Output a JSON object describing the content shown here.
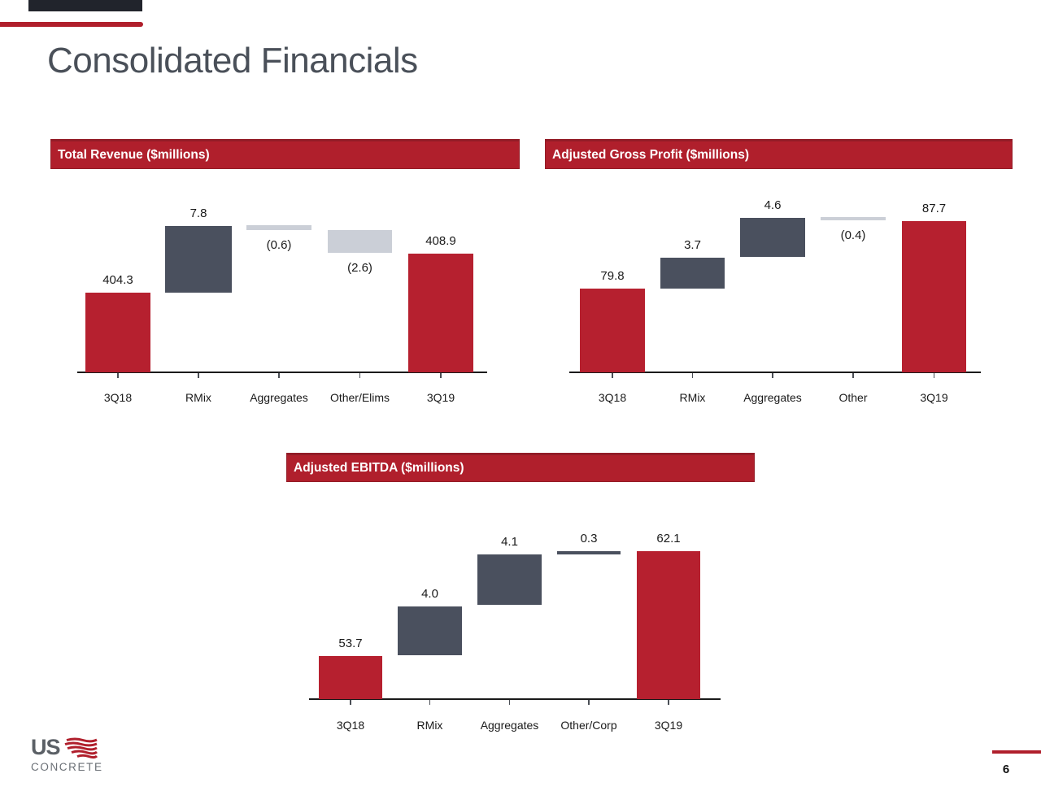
{
  "slide": {
    "title": "Consolidated Financials",
    "page_number": "6"
  },
  "logo": {
    "line1": "US",
    "line2": "CONCRETE",
    "flag_icon": "us-flag-stripes-icon"
  },
  "colors": {
    "accent_red": "#b01f2c",
    "bar_red": "#b6202f",
    "bar_slate": "#4a505e",
    "bar_gray": "#cbcfd7",
    "axis": "#1a1a1a",
    "header_dark": "#21242c",
    "title_text": "#4a5059",
    "label_text": "#1a1a1a"
  },
  "chart_data": [
    {
      "type": "bar",
      "subtype": "waterfall",
      "title": "Total Revenue ($millions)",
      "categories": [
        "3Q18",
        "RMix",
        "Aggregates",
        "Other/Elims",
        "3Q19"
      ],
      "values": [
        404.3,
        7.8,
        -0.6,
        -2.6,
        408.9
      ],
      "labels": [
        "404.3",
        "7.8",
        "(0.6)",
        "(2.6)",
        "408.9"
      ],
      "bar_kinds": [
        "total",
        "increase",
        "decrease",
        "decrease",
        "total"
      ],
      "label_side": [
        "above",
        "above",
        "below",
        "below",
        "above"
      ],
      "xlabel": "",
      "ylabel": "",
      "grid": false,
      "legend": false
    },
    {
      "type": "bar",
      "subtype": "waterfall",
      "title": "Adjusted Gross Profit ($millions)",
      "categories": [
        "3Q18",
        "RMix",
        "Aggregates",
        "Other",
        "3Q19"
      ],
      "values": [
        79.8,
        3.7,
        4.6,
        -0.4,
        87.7
      ],
      "labels": [
        "79.8",
        "3.7",
        "4.6",
        "(0.4)",
        "87.7"
      ],
      "bar_kinds": [
        "total",
        "increase",
        "increase",
        "decrease",
        "total"
      ],
      "label_side": [
        "above",
        "above",
        "above",
        "below",
        "above"
      ],
      "xlabel": "",
      "ylabel": "",
      "grid": false,
      "legend": false
    },
    {
      "type": "bar",
      "subtype": "waterfall",
      "title": "Adjusted EBITDA ($millions)",
      "categories": [
        "3Q18",
        "RMix",
        "Aggregates",
        "Other/Corp",
        "3Q19"
      ],
      "values": [
        53.7,
        4.0,
        4.1,
        0.3,
        62.1
      ],
      "labels": [
        "53.7",
        "4.0",
        "4.1",
        "0.3",
        "62.1"
      ],
      "bar_kinds": [
        "total",
        "increase",
        "increase",
        "increase",
        "total"
      ],
      "label_side": [
        "above",
        "above",
        "above",
        "above",
        "above"
      ],
      "xlabel": "",
      "ylabel": "",
      "grid": false,
      "legend": false
    }
  ]
}
